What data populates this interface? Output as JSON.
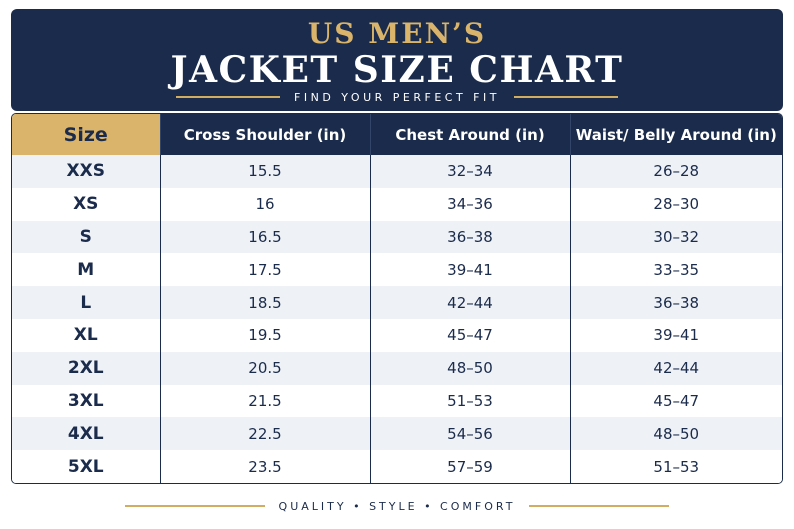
{
  "header": {
    "title_top": "US MEN’S",
    "title_main": "JACKET SIZE CHART",
    "tagline": "FIND YOUR PERFECT FIT"
  },
  "table": {
    "columns": [
      "Size",
      "Cross Shoulder (in)",
      "Chest Around (in)",
      "Waist/ Belly Around (in)"
    ],
    "rows": [
      [
        "XXS",
        "15.5",
        "32–34",
        "26–28"
      ],
      [
        "XS",
        "16",
        "34–36",
        "28–30"
      ],
      [
        "S",
        "16.5",
        "36–38",
        "30–32"
      ],
      [
        "M",
        "17.5",
        "39–41",
        "33–35"
      ],
      [
        "L",
        "18.5",
        "42–44",
        "36–38"
      ],
      [
        "XL",
        "19.5",
        "45–47",
        "39–41"
      ],
      [
        "2XL",
        "20.5",
        "48–50",
        "42–44"
      ],
      [
        "3XL",
        "21.5",
        "51–53",
        "45–47"
      ],
      [
        "4XL",
        "22.5",
        "54–56",
        "48–50"
      ],
      [
        "5XL",
        "23.5",
        "57–59",
        "51–53"
      ]
    ]
  },
  "footer": {
    "text": "QUALITY  •  STYLE  •  COMFORT"
  },
  "colors": {
    "navy": "#1b2b4b",
    "gold": "#d9b46a",
    "stripe": "#eef2f7"
  }
}
